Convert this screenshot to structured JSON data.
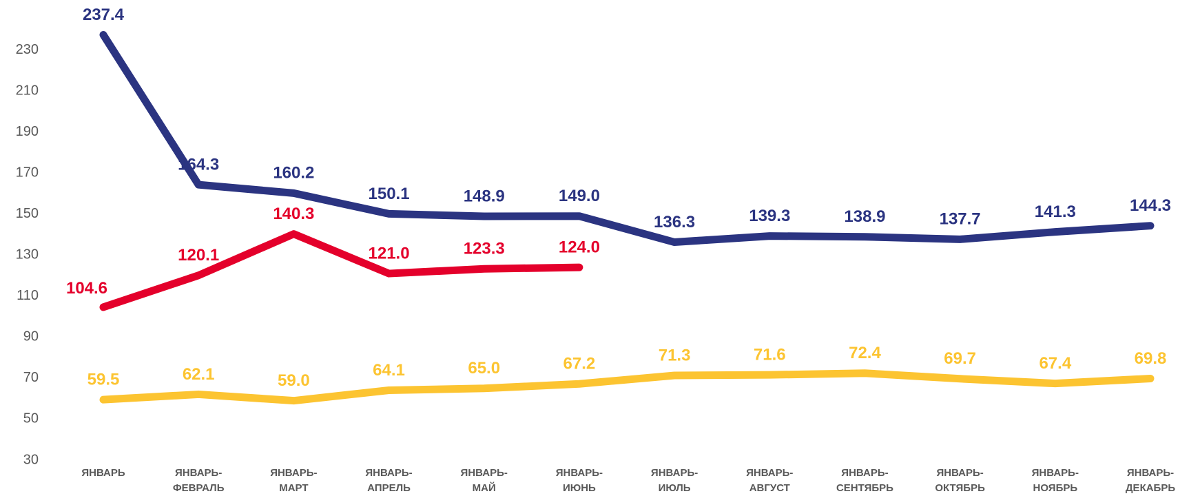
{
  "chart_data": {
    "type": "line",
    "categories": [
      "ЯНВАРЬ",
      "ЯНВАРЬ-ФЕВРАЛЬ",
      "ЯНВАРЬ-МАРТ",
      "ЯНВАРЬ-АПРЕЛЬ",
      "ЯНВАРЬ-МАЙ",
      "ЯНВАРЬ-ИЮНЬ",
      "ЯНВАРЬ-ИЮЛЬ",
      "ЯНВАРЬ-АВГУСТ",
      "ЯНВАРЬ-СЕНТЯБРЬ",
      "ЯНВАРЬ-ОКТЯБРЬ",
      "ЯНВАРЬ-НОЯБРЬ",
      "ЯНВАРЬ-ДЕКАБРЬ"
    ],
    "series": [
      {
        "color": "#2b3481",
        "values": [
          237.4,
          164.3,
          160.2,
          150.1,
          148.9,
          149,
          136.3,
          139.3,
          138.9,
          137.7,
          141.3,
          144.3
        ],
        "value_labels": [
          "237.4",
          "164.3",
          "160.2",
          "150.1",
          "148.9",
          "149.0",
          "136.3",
          "139.3",
          "138.9",
          "137.7",
          "141.3",
          "144.3"
        ]
      },
      {
        "color": "#e4002b",
        "values": [
          104.6,
          120.1,
          140.3,
          121,
          123.3,
          124,
          null,
          null,
          null,
          null,
          null,
          null
        ],
        "value_labels": [
          "104.6",
          "120.1",
          "140.3",
          "121.0",
          "123.3",
          "124.0",
          null,
          null,
          null,
          null,
          null,
          null
        ]
      },
      {
        "color": "#fcc431",
        "values": [
          59.5,
          62.1,
          59,
          64.1,
          65,
          67.2,
          71.3,
          71.6,
          72.4,
          69.7,
          67.4,
          69.8
        ],
        "value_labels": [
          "59.5",
          "62.1",
          "59.0",
          "64.1",
          "65.0",
          "67.2",
          "71.3",
          "71.6",
          "72.4",
          "69.7",
          "67.4",
          "69.8"
        ]
      }
    ],
    "ylim": [
      30,
      250
    ],
    "yticks": [
      30,
      50,
      70,
      90,
      110,
      130,
      150,
      170,
      190,
      210,
      230
    ],
    "grid": false
  }
}
